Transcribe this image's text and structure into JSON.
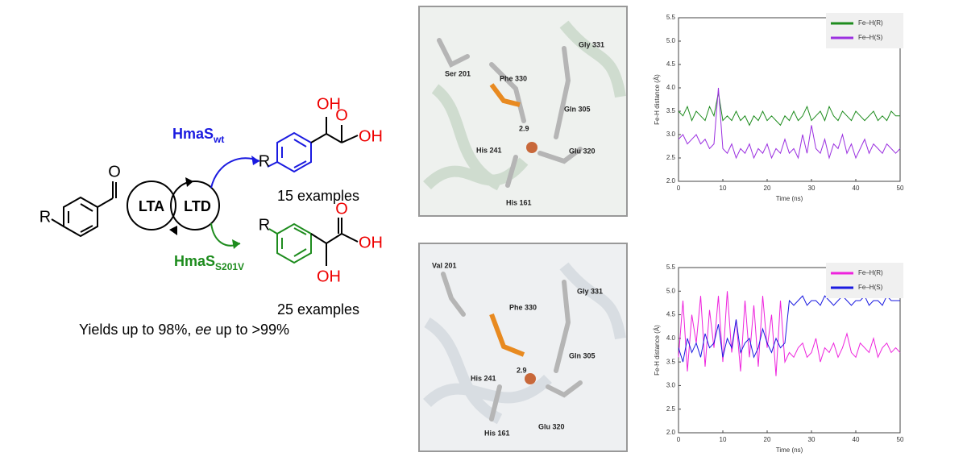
{
  "scheme": {
    "aldehyde_o": "O",
    "aldehyde_r": "R",
    "cycle_left": "LTA",
    "cycle_right": "LTD",
    "enzyme_top": {
      "name": "HmaS",
      "sub": "wt"
    },
    "enzyme_bottom": {
      "name": "HmaS",
      "sub": "S201V"
    },
    "product_top": {
      "r": "R",
      "oh": "OH",
      "acid_o": "O",
      "acid_oh": "OH",
      "count": "15 examples"
    },
    "product_bottom": {
      "r": "R",
      "oh": "OH",
      "acid_o": "O",
      "acid_oh": "OH",
      "count": "25 examples"
    },
    "summary": {
      "before": "Yields up to 98%, ",
      "italic": "ee",
      "after": " up to >99%"
    }
  },
  "structures": [
    {
      "labels": [
        "Ser 201",
        "Gly 331",
        "Phe 330",
        "Gln 305",
        "2.9",
        "His 241",
        "Glu 320",
        "His 161"
      ]
    },
    {
      "labels": [
        "Val 201",
        "Gly 331",
        "Phe 330",
        "Gln 305",
        "2.9",
        "His 241",
        "His 161",
        "Glu 320"
      ]
    }
  ],
  "chart_data": [
    {
      "type": "line",
      "xlabel": "Time (ns)",
      "ylabel": "Fe-H distance (Å)",
      "legend": "upper right",
      "x": [
        0,
        1,
        2,
        3,
        4,
        5,
        6,
        7,
        8,
        9,
        10,
        11,
        12,
        13,
        14,
        15,
        16,
        17,
        18,
        19,
        20,
        21,
        22,
        23,
        24,
        25,
        26,
        27,
        28,
        29,
        30,
        31,
        32,
        33,
        34,
        35,
        36,
        37,
        38,
        39,
        40,
        41,
        42,
        43,
        44,
        45,
        46,
        47,
        48,
        49,
        50
      ],
      "xlim": [
        0,
        50
      ],
      "xticks": [
        0,
        10,
        20,
        30,
        40,
        50
      ],
      "ylim": [
        2,
        5.5
      ],
      "yticks": [
        {
          "value": 2,
          "label": "2.0"
        },
        {
          "value": 2.5,
          "label": "2.5"
        },
        {
          "value": 3,
          "label": "3.0"
        },
        {
          "value": 3.5,
          "label": "3.5"
        },
        {
          "value": 4,
          "label": "4.0"
        },
        {
          "value": 4.5,
          "label": "4.5"
        },
        {
          "value": 5,
          "label": "5.0"
        },
        {
          "value": 5.5,
          "label": "5.5"
        }
      ],
      "series": [
        {
          "name": "Fe–H(R)",
          "color": "#1e8c1e",
          "values": [
            3.5,
            3.4,
            3.6,
            3.3,
            3.5,
            3.4,
            3.3,
            3.6,
            3.4,
            3.9,
            3.3,
            3.4,
            3.3,
            3.5,
            3.3,
            3.4,
            3.2,
            3.4,
            3.3,
            3.5,
            3.3,
            3.4,
            3.3,
            3.2,
            3.4,
            3.3,
            3.5,
            3.3,
            3.4,
            3.6,
            3.3,
            3.4,
            3.5,
            3.3,
            3.6,
            3.4,
            3.3,
            3.5,
            3.4,
            3.3,
            3.5,
            3.4,
            3.3,
            3.4,
            3.5,
            3.3,
            3.4,
            3.3,
            3.5,
            3.4,
            3.4
          ]
        },
        {
          "name": "Fe–H(S)",
          "color": "#9b30e0",
          "values": [
            2.9,
            3.0,
            2.8,
            2.9,
            3.0,
            2.8,
            2.9,
            2.7,
            2.8,
            4.0,
            2.7,
            2.6,
            2.8,
            2.5,
            2.7,
            2.6,
            2.8,
            2.5,
            2.7,
            2.6,
            2.8,
            2.5,
            2.7,
            2.6,
            2.9,
            2.6,
            2.7,
            2.5,
            3.0,
            2.6,
            3.2,
            2.7,
            2.6,
            2.9,
            2.5,
            2.8,
            2.7,
            3.0,
            2.6,
            2.8,
            2.5,
            2.7,
            2.9,
            2.6,
            2.8,
            2.7,
            2.6,
            2.8,
            2.7,
            2.6,
            2.7
          ]
        }
      ]
    },
    {
      "type": "line",
      "xlabel": "Time (ns)",
      "ylabel": "Fe-H distance (Å)",
      "legend": "upper right",
      "x": [
        0,
        1,
        2,
        3,
        4,
        5,
        6,
        7,
        8,
        9,
        10,
        11,
        12,
        13,
        14,
        15,
        16,
        17,
        18,
        19,
        20,
        21,
        22,
        23,
        24,
        25,
        26,
        27,
        28,
        29,
        30,
        31,
        32,
        33,
        34,
        35,
        36,
        37,
        38,
        39,
        40,
        41,
        42,
        43,
        44,
        45,
        46,
        47,
        48,
        49,
        50
      ],
      "xlim": [
        0,
        50
      ],
      "xticks": [
        0,
        10,
        20,
        30,
        40,
        50
      ],
      "ylim": [
        2,
        5.5
      ],
      "yticks": [
        {
          "value": 2,
          "label": "2.0"
        },
        {
          "value": 2.5,
          "label": "2.5"
        },
        {
          "value": 3,
          "label": "3.0"
        },
        {
          "value": 3.5,
          "label": "3.5"
        },
        {
          "value": 4,
          "label": "4.0"
        },
        {
          "value": 4.5,
          "label": "4.5"
        },
        {
          "value": 5,
          "label": "5.0"
        },
        {
          "value": 5.5,
          "label": "5.5"
        }
      ],
      "series": [
        {
          "name": "Fe–H(R)",
          "color": "#ee22dd",
          "values": [
            3.6,
            4.8,
            3.3,
            4.5,
            3.9,
            4.9,
            3.4,
            4.6,
            3.8,
            4.9,
            3.5,
            5.0,
            3.7,
            4.4,
            3.3,
            4.8,
            3.6,
            4.7,
            3.4,
            4.9,
            3.8,
            4.5,
            3.2,
            4.8,
            3.5,
            3.7,
            3.6,
            3.8,
            3.9,
            3.6,
            3.7,
            4.0,
            3.5,
            3.8,
            3.7,
            3.9,
            3.6,
            3.8,
            4.1,
            3.7,
            3.6,
            3.9,
            3.8,
            3.7,
            4.0,
            3.6,
            3.8,
            3.9,
            3.7,
            3.8,
            3.7
          ]
        },
        {
          "name": "Fe–H(S)",
          "color": "#1a1ae0",
          "values": [
            3.8,
            3.5,
            4.0,
            3.7,
            3.9,
            3.6,
            4.1,
            3.8,
            3.9,
            4.3,
            3.6,
            4.0,
            3.8,
            4.4,
            3.7,
            3.9,
            4.0,
            3.6,
            3.8,
            4.2,
            3.9,
            3.7,
            4.0,
            3.8,
            3.9,
            4.8,
            4.7,
            4.8,
            4.9,
            4.7,
            4.8,
            4.8,
            4.7,
            4.9,
            4.8,
            4.7,
            4.8,
            4.9,
            4.8,
            4.7,
            4.8,
            4.8,
            4.9,
            4.7,
            4.8,
            4.8,
            4.7,
            4.9,
            4.8,
            4.8,
            4.8
          ]
        }
      ]
    }
  ]
}
